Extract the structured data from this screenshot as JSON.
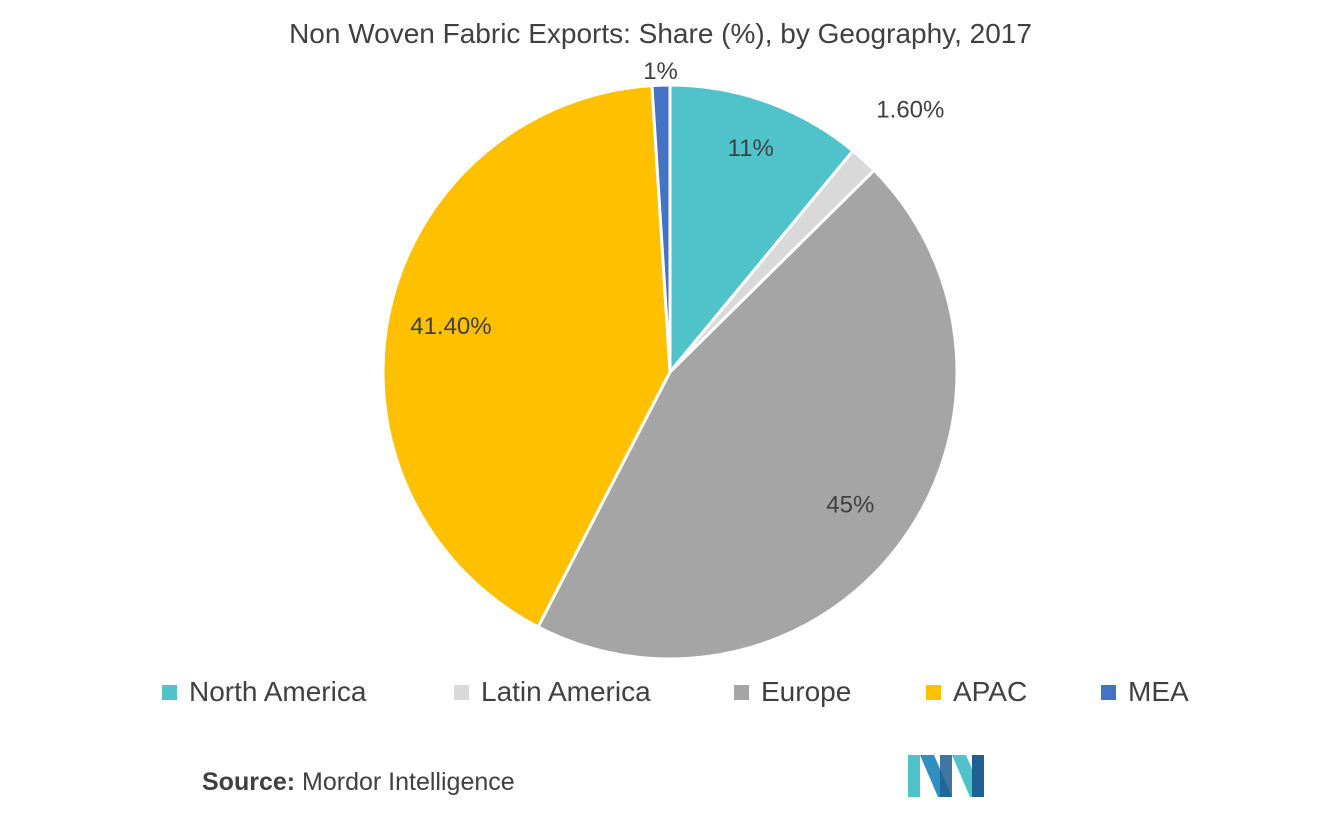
{
  "title": "Non Woven Fabric Exports: Share (%), by Geography, 2017",
  "chart_data": {
    "type": "pie",
    "title": "Non Woven Fabric Exports: Share (%), by Geography, 2017",
    "slices": [
      {
        "label": "North America",
        "value": 11.0,
        "display": "11%",
        "color": "#4fc3c9"
      },
      {
        "label": "Latin America",
        "value": 1.6,
        "display": "1.60%",
        "color": "#d9d9d9"
      },
      {
        "label": "Europe",
        "value": 45.0,
        "display": "45%",
        "color": "#a5a5a5"
      },
      {
        "label": "APAC",
        "value": 41.4,
        "display": "41.40%",
        "color": "#ffc000"
      },
      {
        "label": "MEA",
        "value": 1.0,
        "display": "1%",
        "color": "#4472c4"
      }
    ],
    "legend_position": "bottom",
    "start_angle": "12 o'clock",
    "direction": "clockwise"
  },
  "source": {
    "label": "Source:",
    "text": "Mordor Intelligence"
  },
  "logo": {
    "name": "mordor-intelligence-logo",
    "colors": [
      "#4fc3c9",
      "#2f8fc0",
      "#1f5f91"
    ]
  }
}
